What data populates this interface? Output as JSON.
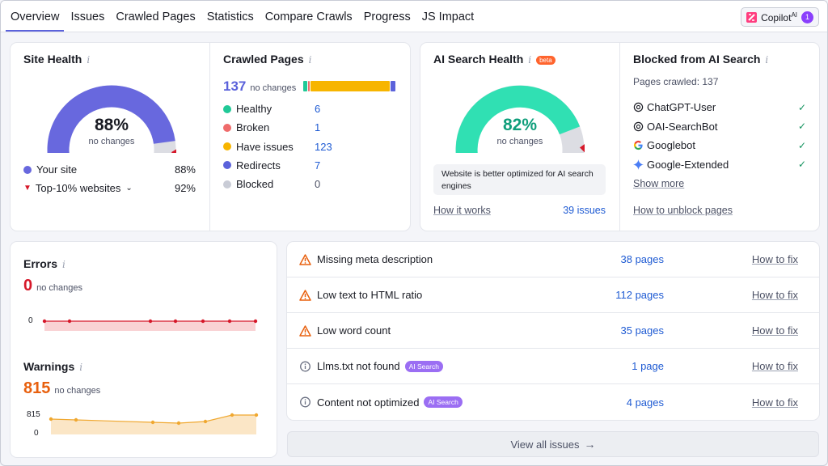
{
  "tabs": [
    "Overview",
    "Issues",
    "Crawled Pages",
    "Statistics",
    "Compare Crawls",
    "Progress",
    "JS Impact"
  ],
  "copilot": {
    "label": "Copilot",
    "sup": "AI",
    "badge": "1"
  },
  "site_health": {
    "title": "Site Health",
    "value": "88%",
    "value_fraction": 0.88,
    "sub": "no changes",
    "your_site_label": "Your site",
    "your_site_value": "88%",
    "top_label": "Top-10% websites",
    "top_value": "92%",
    "colors": {
      "main": "#6868de",
      "marker": "#d6182a"
    }
  },
  "crawled_pages": {
    "title": "Crawled Pages",
    "total": "137",
    "sub": "no changes",
    "items": [
      {
        "label": "Healthy",
        "value": "6",
        "color": "#20c997"
      },
      {
        "label": "Broken",
        "value": "1",
        "color": "#ef6b6b"
      },
      {
        "label": "Have issues",
        "value": "123",
        "color": "#f7b500"
      },
      {
        "label": "Redirects",
        "value": "7",
        "color": "#5b62db"
      },
      {
        "label": "Blocked",
        "value": "0",
        "color": "#c9ccd6"
      }
    ]
  },
  "ai_health": {
    "title": "AI Search Health",
    "beta": "beta",
    "value": "82%",
    "value_fraction": 0.82,
    "sub": "no changes",
    "note": "Website is better optimized for AI search engines",
    "how_link": "How it works",
    "issues_link": "39 issues",
    "color": "#30e0b3"
  },
  "blocked": {
    "title": "Blocked from AI Search",
    "pages_crawled": "Pages crawled: 137",
    "bots": [
      {
        "name": "ChatGPT-User",
        "icon": "openai-icon"
      },
      {
        "name": "OAI-SearchBot",
        "icon": "openai-icon"
      },
      {
        "name": "Googlebot",
        "icon": "google-icon"
      },
      {
        "name": "Google-Extended",
        "icon": "gemini-icon"
      }
    ],
    "show_more": "Show more",
    "unblock_link": "How to unblock pages"
  },
  "errors": {
    "title": "Errors",
    "value": "0",
    "sub": "no changes",
    "axis": "0",
    "color": "#d6182a"
  },
  "warnings": {
    "title": "Warnings",
    "value": "815",
    "sub": "no changes",
    "axis_top": "815",
    "axis_bottom": "0",
    "color": "#f0a830"
  },
  "issues": [
    {
      "type": "warning",
      "label": "Missing meta description",
      "badge": "",
      "pages": "38 pages",
      "fix": "How to fix"
    },
    {
      "type": "warning",
      "label": "Low text to HTML ratio",
      "badge": "",
      "pages": "112 pages",
      "fix": "How to fix"
    },
    {
      "type": "warning",
      "label": "Low word count",
      "badge": "",
      "pages": "35 pages",
      "fix": "How to fix"
    },
    {
      "type": "info",
      "label": "Llms.txt not found",
      "badge": "AI Search",
      "pages": "1 page",
      "fix": "How to fix"
    },
    {
      "type": "info",
      "label": "Content not optimized",
      "badge": "AI Search",
      "pages": "4 pages",
      "fix": "How to fix"
    }
  ],
  "view_all": "View all issues"
}
